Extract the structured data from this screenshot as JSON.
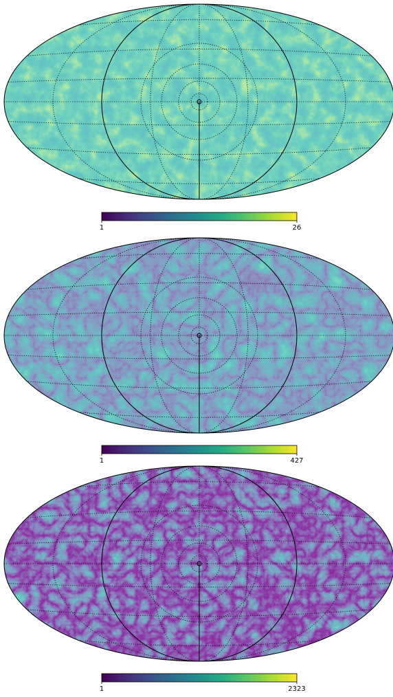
{
  "chart_data": [
    {
      "type": "map",
      "clim": [
        1,
        26
      ],
      "cticks": [
        1,
        26
      ]
    },
    {
      "type": "map",
      "clim": [
        1,
        427
      ],
      "cticks": [
        1,
        427
      ]
    },
    {
      "type": "map",
      "clim": [
        1,
        2323
      ],
      "cticks": [
        1,
        2323
      ]
    }
  ]
}
